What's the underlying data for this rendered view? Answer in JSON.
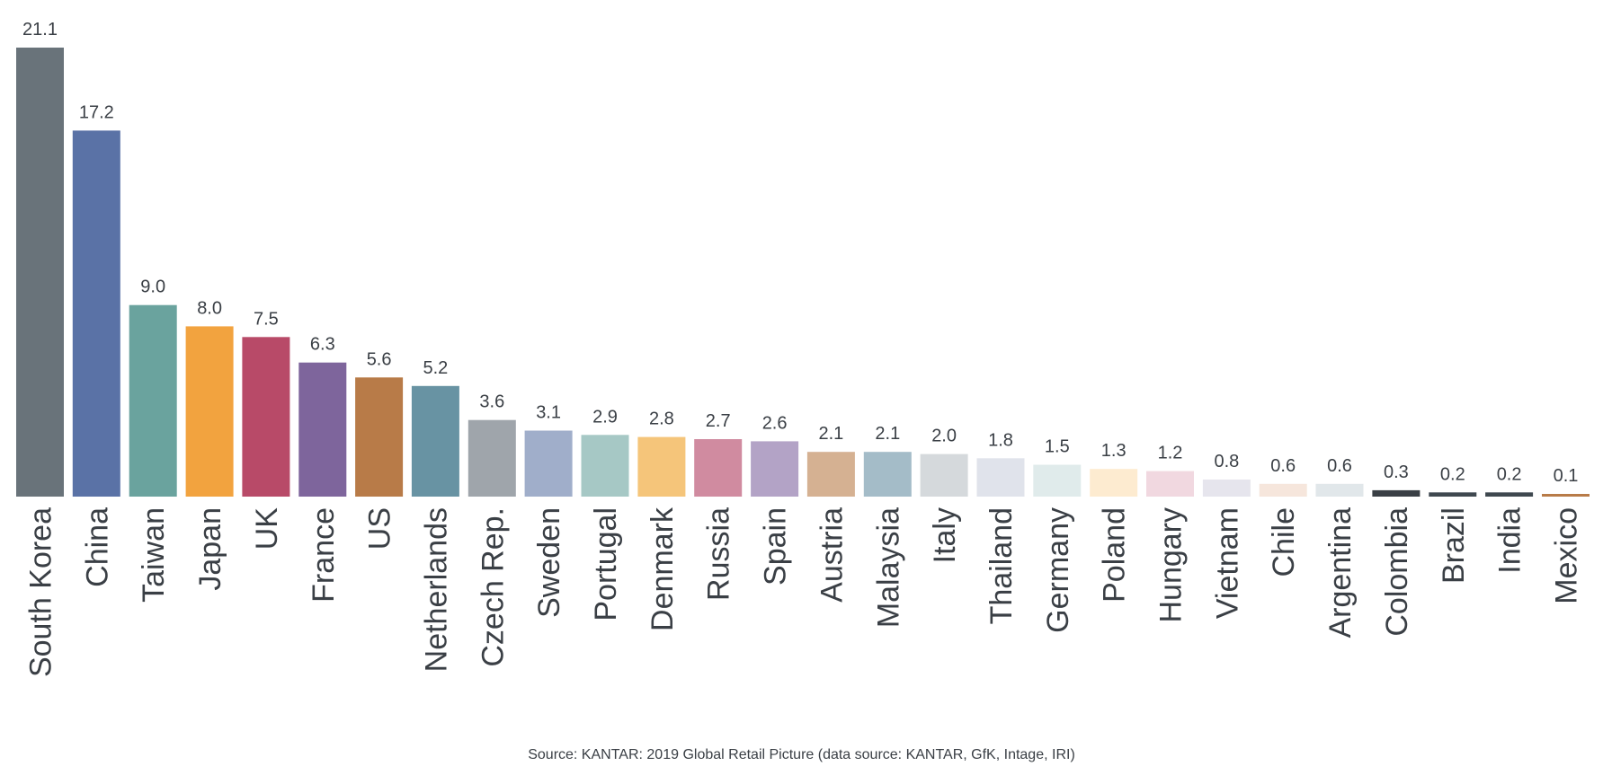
{
  "chart_data": {
    "type": "bar",
    "title": "",
    "xlabel": "",
    "ylabel": "",
    "ylim": [
      0,
      21.1
    ],
    "grid": false,
    "legend": "none",
    "categories": [
      "South Korea",
      "China",
      "Taiwan",
      "Japan",
      "UK",
      "France",
      "US",
      "Netherlands",
      "Czech Rep.",
      "Sweden",
      "Portugal",
      "Denmark",
      "Russia",
      "Spain",
      "Austria",
      "Malaysia",
      "Italy",
      "Thailand",
      "Germany",
      "Poland",
      "Hungary",
      "Vietnam",
      "Chile",
      "Argentina",
      "Colombia",
      "Brazil",
      "India",
      "Mexico"
    ],
    "values": [
      21.1,
      17.2,
      9.0,
      8.0,
      7.5,
      6.3,
      5.6,
      5.2,
      3.6,
      3.1,
      2.9,
      2.8,
      2.7,
      2.6,
      2.1,
      2.1,
      2.0,
      1.8,
      1.5,
      1.3,
      1.2,
      0.8,
      0.6,
      0.6,
      0.3,
      0.2,
      0.2,
      0.1
    ],
    "value_labels": [
      "21.1",
      "17.2",
      "9.0",
      "8.0",
      "7.5",
      "6.3",
      "5.6",
      "5.2",
      "3.6",
      "3.1",
      "2.9",
      "2.8",
      "2.7",
      "2.6",
      "2.1",
      "2.1",
      "2.0",
      "1.8",
      "1.5",
      "1.3",
      "1.2",
      "0.8",
      "0.6",
      "0.6",
      "0.3",
      "0.2",
      "0.2",
      "0.1"
    ],
    "colors": [
      "#69737a",
      "#5a72a6",
      "#6aa39e",
      "#f2a33f",
      "#b84a68",
      "#7e659c",
      "#b87b48",
      "#6893a3",
      "#9fa5ab",
      "#a0aeca",
      "#a6c8c5",
      "#f5c57a",
      "#d08ba0",
      "#b3a3c6",
      "#d5b192",
      "#a4bcc8",
      "#d5d9dc",
      "#e0e3eb",
      "#e0ebeb",
      "#fdebd0",
      "#f1d8e0",
      "#e6e5ed",
      "#f6e6dc",
      "#e1e7ea",
      "#3a3f45",
      "#3f484f",
      "#3f484f",
      "#b87b48"
    ]
  },
  "source": "Source: KANTAR: 2019 Global Retail Picture  (data source: KANTAR, GfK, Intage, IRI)"
}
